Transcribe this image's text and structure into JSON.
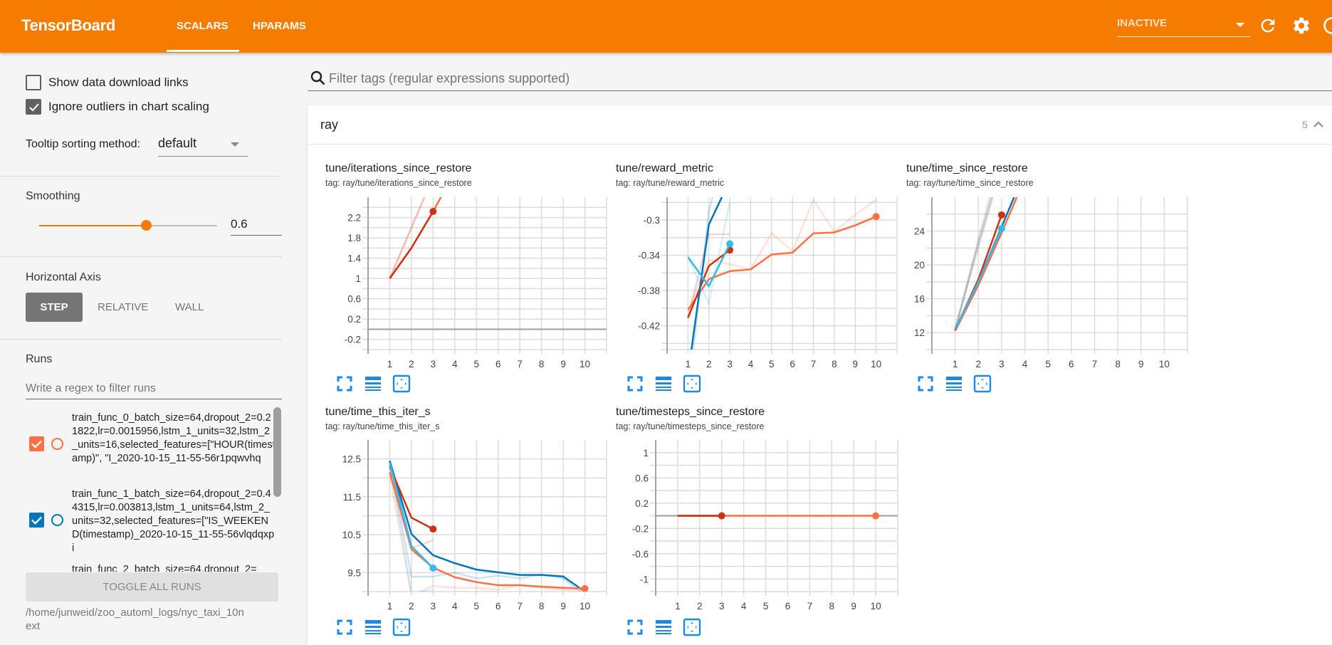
{
  "header": {
    "title": "TensorBoard",
    "tabs": [
      {
        "label": "SCALARS",
        "active": true
      },
      {
        "label": "HPARAMS",
        "active": false
      }
    ],
    "run_selector": "INACTIVE",
    "icons": [
      "refresh-icon",
      "settings-icon",
      "help-icon"
    ],
    "brand_color": "#f57c00"
  },
  "sidebar": {
    "show_download_links": {
      "label": "Show data download links",
      "checked": false
    },
    "ignore_outliers": {
      "label": "Ignore outliers in chart scaling",
      "checked": true
    },
    "tooltip_sorting": {
      "label": "Tooltip sorting method:",
      "value": "default"
    },
    "smoothing": {
      "label": "Smoothing",
      "value": "0.6",
      "fraction": 0.6
    },
    "horizontal_axis": {
      "label": "Horizontal Axis",
      "options": [
        "STEP",
        "RELATIVE",
        "WALL"
      ],
      "selected": "STEP"
    },
    "runs": {
      "label": "Runs",
      "filter_placeholder": "Write a regex to filter runs",
      "items": [
        {
          "name": "train_func_0_batch_size=64,dropout_2=0.21822,lr=0.0015956,lstm_1_units=32,lstm_2_units=16,selected_features=[\"HOUR(timestamp)\", \"I_2020-10-15_11-55-56r1pqwvhq",
          "checked": true,
          "color": "#ff7043"
        },
        {
          "name": "train_func_1_batch_size=64,dropout_2=0.44315,lr=0.003813,lstm_1_units=64,lstm_2_units=32,selected_features=[\"IS_WEEKEND(timestamp)_2020-10-15_11-55-56vlqdqxpi",
          "checked": true,
          "color": "#0077bb"
        },
        {
          "name": "train_func_2_batch_size=64,dropout_2=",
          "checked": true,
          "color": "#cc3311"
        }
      ],
      "toggle_all_label": "TOGGLE ALL RUNS",
      "logdir": "/home/junweid/zoo_automl_logs/nyc_taxi_10next"
    }
  },
  "main": {
    "filter_placeholder": "Filter tags (regular expressions supported)",
    "group": {
      "name": "ray",
      "count": "5"
    }
  },
  "chart_data": [
    {
      "type": "line",
      "title": "tune/iterations_since_restore",
      "tag": "tag: ray/tune/iterations_since_restore",
      "xlim": [
        0,
        11
      ],
      "ylim": [
        -0.4,
        2.6
      ],
      "xticks": [
        1,
        2,
        3,
        4,
        5,
        6,
        7,
        8,
        9,
        10
      ],
      "yticks": [
        2.2,
        1.8,
        1.4,
        1,
        0.6,
        0.2,
        -0.2
      ],
      "grid": true,
      "series": [
        {
          "color": "#ff7043",
          "raw": [
            [
              1,
              1
            ],
            [
              2,
              2
            ],
            [
              3,
              3
            ],
            [
              4,
              4
            ]
          ],
          "smoothed": [
            [
              1,
              1
            ],
            [
              2,
              1.6
            ],
            [
              3,
              2.32
            ],
            [
              4,
              3.1
            ]
          ],
          "dot": false
        },
        {
          "color": "#cc3311",
          "raw": [
            [
              1,
              1
            ],
            [
              2,
              2
            ],
            [
              3,
              3
            ]
          ],
          "smoothed": [
            [
              1,
              1
            ],
            [
              2,
              1.6
            ],
            [
              3,
              2.32
            ]
          ],
          "dot": true
        }
      ]
    },
    {
      "type": "line",
      "title": "tune/reward_metric",
      "tag": "tag: ray/tune/reward_metric",
      "xlim": [
        0,
        11
      ],
      "ylim": [
        -0.447,
        -0.274
      ],
      "xticks": [
        1,
        2,
        3,
        4,
        5,
        6,
        7,
        8,
        9,
        10
      ],
      "yticks": [
        -0.3,
        -0.34,
        -0.38,
        -0.42
      ],
      "grid": true,
      "series": [
        {
          "color": "#ff7043",
          "raw": [
            [
              1,
              -0.402
            ],
            [
              2,
              -0.345
            ],
            [
              3,
              -0.35
            ],
            [
              4,
              -0.356
            ],
            [
              5,
              -0.315
            ],
            [
              6,
              -0.335
            ],
            [
              7,
              -0.277
            ],
            [
              8,
              -0.313
            ],
            [
              9,
              -0.294
            ],
            [
              10,
              -0.277
            ]
          ],
          "smoothed": [
            [
              1,
              -0.402
            ],
            [
              2,
              -0.367
            ],
            [
              3,
              -0.358
            ],
            [
              4,
              -0.356
            ],
            [
              5,
              -0.339
            ],
            [
              6,
              -0.337
            ],
            [
              7,
              -0.315
            ],
            [
              8,
              -0.314
            ],
            [
              9,
              -0.306
            ],
            [
              10,
              -0.296
            ]
          ],
          "dot": true
        },
        {
          "color": "#cc3311",
          "raw": [
            [
              1,
              -0.41
            ],
            [
              2,
              -0.316
            ],
            [
              3,
              -0.316
            ]
          ],
          "smoothed": [
            [
              1,
              -0.411
            ],
            [
              2,
              -0.352
            ],
            [
              3,
              -0.334
            ]
          ],
          "dot": true
        },
        {
          "color": "#0077bb",
          "raw": [
            [
              1,
              -0.5
            ],
            [
              2,
              -0.29
            ],
            [
              3,
              -0.2
            ]
          ],
          "smoothed": [
            [
              1,
              -0.475
            ],
            [
              2,
              -0.305
            ],
            [
              3,
              -0.255
            ]
          ],
          "dot": false
        },
        {
          "color": "#33bbee",
          "raw": [
            [
              1,
              -0.342
            ],
            [
              2,
              -0.395
            ],
            [
              3,
              -0.28
            ]
          ],
          "smoothed": [
            [
              1,
              -0.342
            ],
            [
              2,
              -0.375
            ],
            [
              3,
              -0.327
            ]
          ],
          "dot": true
        }
      ]
    },
    {
      "type": "line",
      "title": "tune/time_since_restore",
      "tag": "tag: ray/tune/time_since_restore",
      "xlim": [
        0,
        11
      ],
      "ylim": [
        10,
        28
      ],
      "xticks": [
        1,
        2,
        3,
        4,
        5,
        6,
        7,
        8,
        9,
        10
      ],
      "yticks": [
        24,
        20,
        16,
        12
      ],
      "grid": true,
      "series": [
        {
          "color": "#ff7043",
          "raw": [
            [
              1,
              12.2
            ],
            [
              2,
              22
            ],
            [
              3,
              31.5
            ]
          ],
          "smoothed": [
            [
              1,
              12.2
            ],
            [
              2,
              17.6
            ],
            [
              3,
              23.8
            ],
            [
              4,
              30.2
            ]
          ],
          "dot": false
        },
        {
          "color": "#0077bb",
          "raw": [
            [
              1,
              12.4
            ],
            [
              2,
              22.5
            ],
            [
              3,
              32
            ]
          ],
          "smoothed": [
            [
              1,
              12.4
            ],
            [
              2,
              18
            ],
            [
              3,
              24.5
            ],
            [
              4,
              31
            ]
          ],
          "dot": false
        },
        {
          "color": "#cc3311",
          "raw": [
            [
              1,
              12.3
            ],
            [
              2,
              23
            ],
            [
              3,
              33
            ]
          ],
          "smoothed": [
            [
              1,
              12.3
            ],
            [
              2,
              18.3
            ],
            [
              3,
              25.9
            ]
          ],
          "dot": true
        },
        {
          "color": "#33bbee",
          "raw": [
            [
              1,
              12.4
            ],
            [
              2,
              22.4
            ],
            [
              3,
              31.8
            ]
          ],
          "smoothed": [
            [
              1,
              12.4
            ],
            [
              2,
              18
            ],
            [
              3,
              24.3
            ]
          ],
          "dot": true
        }
      ]
    },
    {
      "type": "line",
      "title": "tune/time_this_iter_s",
      "tag": "tag: ray/tune/time_this_iter_s",
      "xlim": [
        0,
        11
      ],
      "ylim": [
        9,
        13
      ],
      "xticks": [
        1,
        2,
        3,
        4,
        5,
        6,
        7,
        8,
        9,
        10
      ],
      "yticks": [
        12.5,
        11.5,
        10.5,
        9.5
      ],
      "grid": true,
      "series": [
        {
          "color": "#0077bb",
          "raw": [
            [
              1,
              12.4
            ],
            [
              2,
              9.39
            ],
            [
              3,
              9.4
            ],
            [
              4,
              9.5
            ],
            [
              5,
              9.35
            ],
            [
              6,
              9.42
            ],
            [
              7,
              9.35
            ],
            [
              8,
              9.45
            ],
            [
              9,
              9.35
            ],
            [
              10,
              8.9
            ]
          ],
          "smoothed": [
            [
              1,
              12.45
            ],
            [
              2,
              10.52
            ],
            [
              3,
              9.96
            ],
            [
              4,
              9.75
            ],
            [
              5,
              9.58
            ],
            [
              6,
              9.51
            ],
            [
              7,
              9.44
            ],
            [
              8,
              9.44
            ],
            [
              9,
              9.4
            ],
            [
              10,
              9.0
            ]
          ],
          "dot": false
        },
        {
          "color": "#ff7043",
          "raw": [
            [
              1,
              12.1
            ],
            [
              2,
              8.9
            ],
            [
              3,
              9.15
            ],
            [
              4,
              9.1
            ],
            [
              5,
              9.1
            ],
            [
              6,
              9.05
            ],
            [
              7,
              9.17
            ],
            [
              8,
              9.1
            ],
            [
              9,
              9.05
            ],
            [
              10,
              9.05
            ]
          ],
          "smoothed": [
            [
              1,
              12.15
            ],
            [
              2,
              10.12
            ],
            [
              3,
              9.63
            ],
            [
              4,
              9.38
            ],
            [
              5,
              9.25
            ],
            [
              6,
              9.17
            ],
            [
              7,
              9.17
            ],
            [
              8,
              9.13
            ],
            [
              9,
              9.1
            ],
            [
              10,
              9.08
            ]
          ],
          "dot": true
        },
        {
          "color": "#cc3311",
          "raw": [
            [
              1,
              12.3
            ],
            [
              2,
              10.15
            ],
            [
              3,
              10.35
            ]
          ],
          "smoothed": [
            [
              1,
              12.3
            ],
            [
              2,
              10.95
            ],
            [
              3,
              10.65
            ]
          ],
          "dot": true
        },
        {
          "color": "#33bbee",
          "raw": [
            [
              1,
              12.4
            ],
            [
              2,
              8.95
            ],
            [
              3,
              9.05
            ]
          ],
          "smoothed": [
            [
              1,
              12.4
            ],
            [
              2,
              10.2
            ],
            [
              3,
              9.62
            ]
          ],
          "dot": true
        }
      ]
    },
    {
      "type": "line",
      "title": "tune/timesteps_since_restore",
      "tag": "tag: ray/tune/timesteps_since_restore",
      "xlim": [
        0,
        11
      ],
      "ylim": [
        -1.2,
        1.2
      ],
      "xticks": [
        1,
        2,
        3,
        4,
        5,
        6,
        7,
        8,
        9,
        10
      ],
      "yticks": [
        1,
        0.6,
        0.2,
        -0.2,
        -0.6,
        -1
      ],
      "grid": true,
      "series": [
        {
          "color": "#ff7043",
          "raw": [
            [
              1,
              0
            ],
            [
              2,
              0
            ],
            [
              3,
              0
            ],
            [
              4,
              0
            ],
            [
              5,
              0
            ],
            [
              6,
              0
            ],
            [
              7,
              0
            ],
            [
              8,
              0
            ],
            [
              9,
              0
            ],
            [
              10,
              0
            ]
          ],
          "smoothed": [
            [
              1,
              0
            ],
            [
              2,
              0
            ],
            [
              3,
              0
            ],
            [
              4,
              0
            ],
            [
              5,
              0
            ],
            [
              6,
              0
            ],
            [
              7,
              0
            ],
            [
              8,
              0
            ],
            [
              9,
              0
            ],
            [
              10,
              0
            ]
          ],
          "dot": true
        },
        {
          "color": "#cc3311",
          "raw": [
            [
              1,
              0
            ],
            [
              2,
              0
            ],
            [
              3,
              0
            ]
          ],
          "smoothed": [
            [
              1,
              0
            ],
            [
              2,
              0
            ],
            [
              3,
              0
            ]
          ],
          "dot": true
        }
      ]
    }
  ]
}
